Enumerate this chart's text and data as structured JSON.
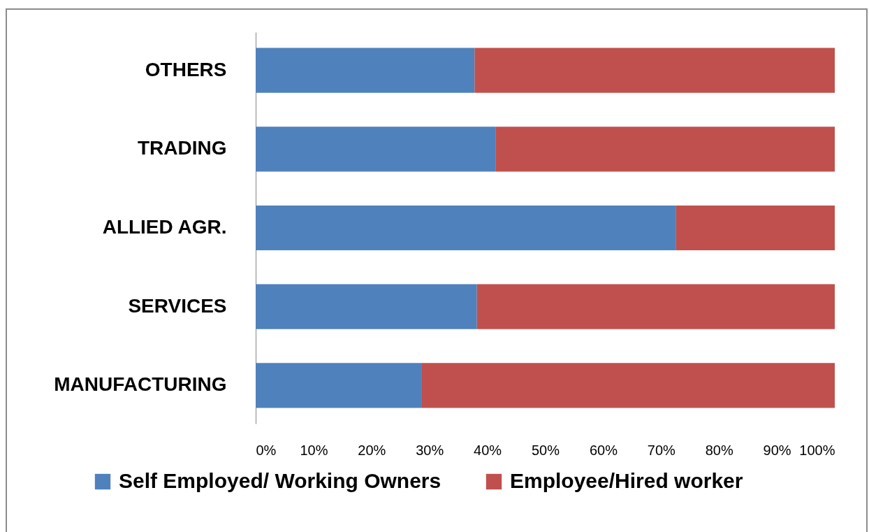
{
  "chart_data": {
    "type": "bar",
    "orientation": "horizontal",
    "stacked": true,
    "categories": [
      "OTHERS",
      "TRADING",
      "ALLIED AGR.",
      "SERVICES",
      "MANUFACTURING"
    ],
    "series": [
      {
        "name": "Self Employed/ Working Owners",
        "color": "#4f81bd",
        "values": [
          37.8,
          41.4,
          72.6,
          38.2,
          28.6
        ]
      },
      {
        "name": "Employee/Hired worker",
        "color": "#c0504d",
        "values": [
          62.2,
          58.6,
          27.4,
          61.8,
          71.4
        ]
      }
    ],
    "xlim": [
      0,
      100
    ],
    "xticks": [
      {
        "value": 0,
        "label": "0%"
      },
      {
        "value": 10,
        "label": "10%"
      },
      {
        "value": 20,
        "label": "20%"
      },
      {
        "value": 30,
        "label": "30%"
      },
      {
        "value": 40,
        "label": "40%"
      },
      {
        "value": 50,
        "label": "50%"
      },
      {
        "value": 60,
        "label": "60%"
      },
      {
        "value": 70,
        "label": "70%"
      },
      {
        "value": 80,
        "label": "80%"
      },
      {
        "value": 90,
        "label": "90%"
      },
      {
        "value": 100,
        "label": "100%"
      }
    ],
    "grid": false,
    "legend": "bottom"
  }
}
